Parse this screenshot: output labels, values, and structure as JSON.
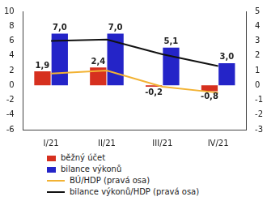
{
  "chart_data": {
    "type": "bar",
    "categories": [
      "I/21",
      "II/21",
      "III/21",
      "IV/21"
    ],
    "series": [
      {
        "name": "běžný účet",
        "type": "bar",
        "color": "#d6301f",
        "values": [
          1.9,
          2.4,
          -0.2,
          -0.8
        ],
        "value_labels": [
          "1,9",
          "2,4",
          "-0,2",
          "-0,8"
        ]
      },
      {
        "name": "bilance výkonů",
        "type": "bar",
        "color": "#2424c8",
        "values": [
          7.0,
          7.0,
          5.1,
          3.0
        ],
        "value_labels": [
          "7,0",
          "7,0",
          "5,1",
          "3,0"
        ]
      },
      {
        "name": "BÚ/HDP (pravá osa)",
        "type": "line",
        "axis": "y2",
        "color": "#f2b233",
        "marker": "none",
        "values": [
          0.8,
          1.0,
          -0.1,
          -0.5
        ]
      },
      {
        "name": "bilance výkonů/HDP (pravá osa)",
        "type": "line",
        "axis": "y2",
        "color": "#111111",
        "marker": "none",
        "values": [
          3.0,
          3.1,
          2.1,
          1.3
        ]
      }
    ],
    "ylim": [
      -6,
      10
    ],
    "yticks": [
      -6,
      -4,
      -2,
      0,
      2,
      4,
      6,
      8,
      10
    ],
    "y2lim": [
      -3,
      5
    ],
    "y2ticks": [
      -3,
      -2,
      -1,
      0,
      1,
      2,
      3,
      4,
      5
    ],
    "grid": false,
    "legend": "bottom",
    "data_labels": true
  }
}
